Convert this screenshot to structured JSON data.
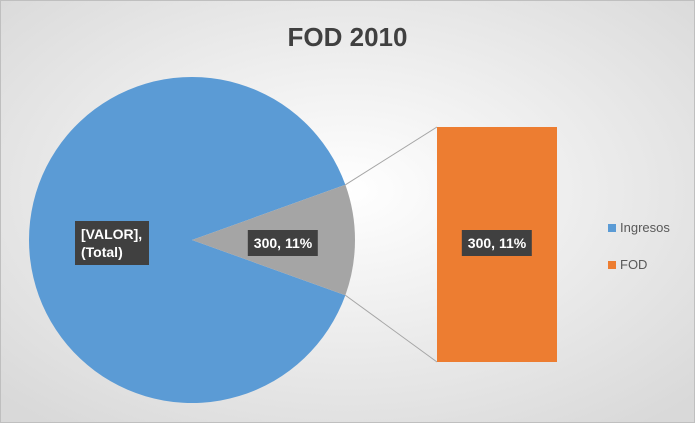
{
  "chart_data": {
    "type": "bar-of-pie",
    "title": "FOD 2010",
    "categories": [
      "Ingresos",
      "FOD"
    ],
    "values": [
      2427,
      300
    ],
    "value_labels": [
      "[VALOR], (Total)",
      "300, 11%"
    ],
    "colors": [
      "#5b9bd5",
      "#ed7d31"
    ],
    "other_label": "300, 11%",
    "other_color": "#a5a5a5",
    "legend": "right"
  }
}
